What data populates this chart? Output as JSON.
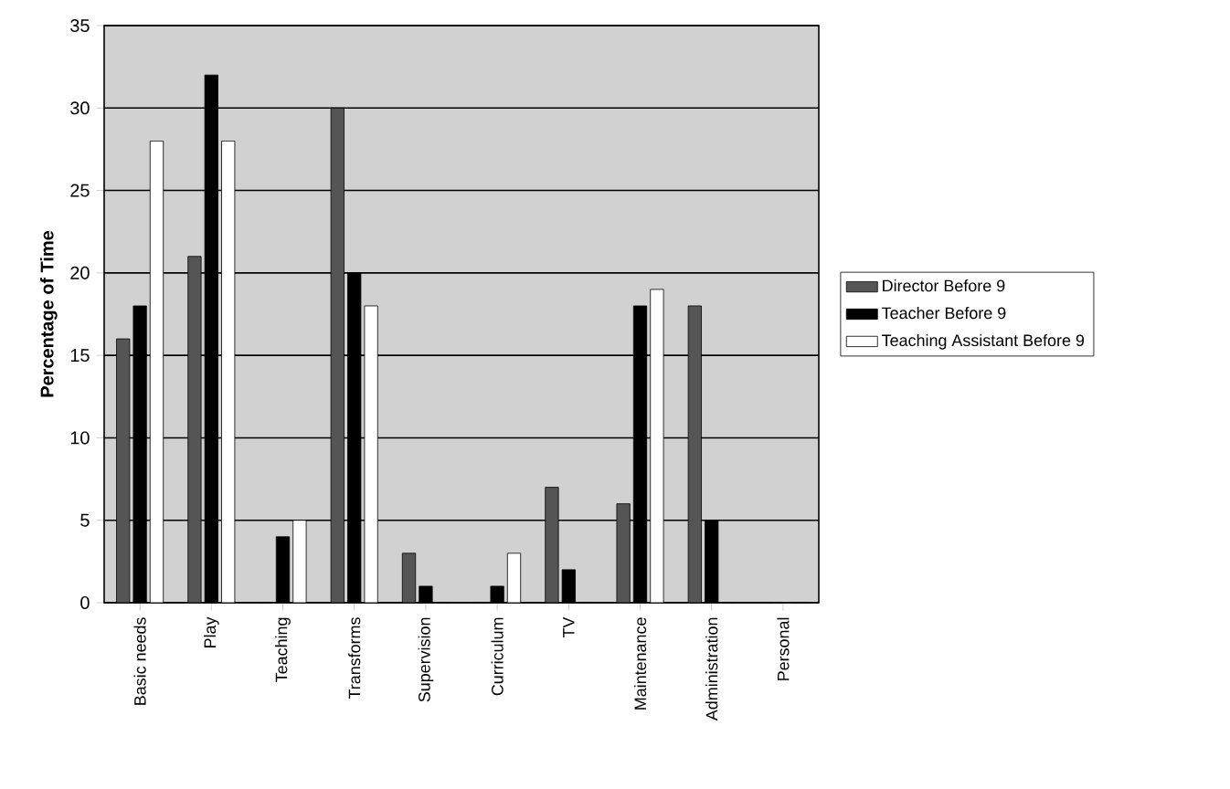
{
  "chart_data": {
    "type": "bar",
    "ylabel": "Percentage of Time",
    "categories": [
      "Basic needs",
      "Play",
      "Teaching",
      "Transforms",
      "Supervision",
      "Curriculum",
      "TV",
      "Maintenance",
      "Administration",
      "Personal"
    ],
    "series": [
      {
        "name": "Director Before 9",
        "color": "#555555",
        "values": [
          16,
          21,
          0,
          30,
          3,
          0,
          7,
          6,
          18,
          0
        ]
      },
      {
        "name": "Teacher Before 9",
        "color": "#000000",
        "values": [
          18,
          32,
          4,
          20,
          1,
          1,
          2,
          18,
          5,
          0
        ]
      },
      {
        "name": "Teaching Assistant Before 9",
        "color": "#ffffff",
        "values": [
          28,
          28,
          5,
          18,
          0,
          3,
          0,
          19,
          0,
          0
        ]
      }
    ],
    "ylim": [
      0,
      35
    ],
    "yticks": [
      0,
      5,
      10,
      15,
      20,
      25,
      30,
      35
    ],
    "grid": "y",
    "legend": "right"
  }
}
